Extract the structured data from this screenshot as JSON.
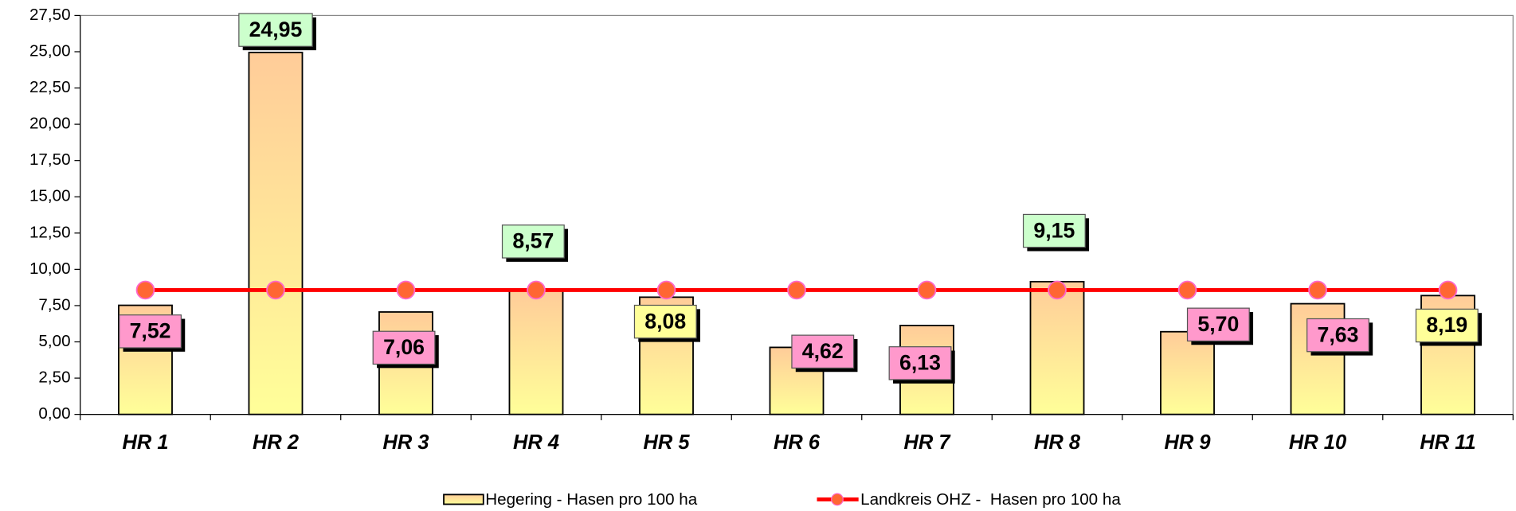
{
  "chart_data": {
    "type": "bar",
    "categories": [
      "HR 1",
      "HR 2",
      "HR 3",
      "HR 4",
      "HR 5",
      "HR 6",
      "HR 7",
      "HR 8",
      "HR 9",
      "HR 10",
      "HR 11"
    ],
    "series": [
      {
        "name": "Hegering - Hasen pro 100 ha",
        "type": "bar",
        "color": "#ffcc99",
        "values": [
          7.52,
          24.95,
          7.06,
          8.57,
          8.08,
          4.62,
          6.13,
          9.15,
          5.7,
          7.63,
          8.19
        ],
        "value_labels": [
          "7,52",
          "24,95",
          "7,06",
          "8,57",
          "8,08",
          "4,62",
          "6,13",
          "9,15",
          "5,70",
          "7,63",
          "8,19"
        ],
        "label_colors": [
          "#ff99cc",
          "#ccffcc",
          "#ff99cc",
          "#ccffcc",
          "#ffff99",
          "#ff99cc",
          "#ff99cc",
          "#ccffcc",
          "#ff99cc",
          "#ff99cc",
          "#ffff99"
        ]
      },
      {
        "name": "Landkreis OHZ -  Hasen pro 100 ha",
        "type": "line",
        "color": "#ff0000",
        "marker_color": "#ff6633",
        "values": [
          8.57,
          8.57,
          8.57,
          8.57,
          8.57,
          8.57,
          8.57,
          8.57,
          8.57,
          8.57,
          8.57
        ]
      }
    ],
    "ylim": [
      0,
      27.5
    ],
    "yticks": [
      {
        "value": 0,
        "label": "0,00"
      },
      {
        "value": 2.5,
        "label": "2,50"
      },
      {
        "value": 5,
        "label": "5,00"
      },
      {
        "value": 7.5,
        "label": "7,50"
      },
      {
        "value": 10,
        "label": "10,00"
      },
      {
        "value": 12.5,
        "label": "12,50"
      },
      {
        "value": 15,
        "label": "15,00"
      },
      {
        "value": 17.5,
        "label": "17,50"
      },
      {
        "value": 20,
        "label": "20,00"
      },
      {
        "value": 22.5,
        "label": "22,50"
      },
      {
        "value": 25,
        "label": "25,00"
      },
      {
        "value": 27.5,
        "label": "27,50"
      }
    ],
    "legend": "bottom"
  }
}
